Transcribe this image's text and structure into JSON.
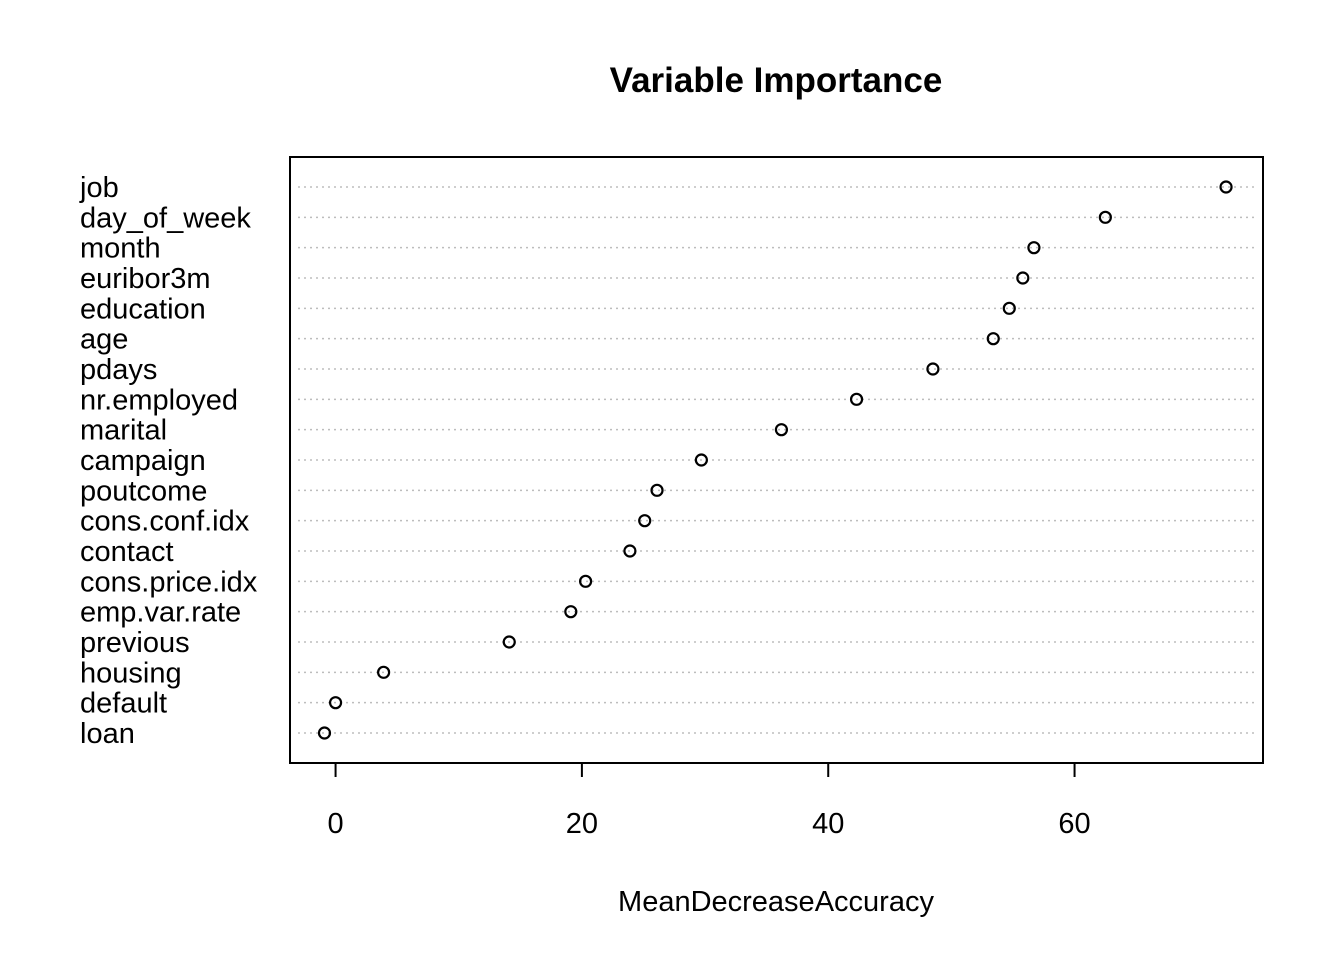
{
  "chart_data": {
    "type": "scatter",
    "title": "Variable Importance",
    "xlabel": "MeanDecreaseAccuracy",
    "ylabel": "",
    "xlim": [
      -3.7,
      75.3
    ],
    "xticks": [
      0,
      20,
      40,
      60
    ],
    "grid": "dotted horizontal",
    "categories": [
      "job",
      "day_of_week",
      "month",
      "euribor3m",
      "education",
      "age",
      "pdays",
      "nr.employed",
      "marital",
      "campaign",
      "poutcome",
      "cons.conf.idx",
      "contact",
      "cons.price.idx",
      "emp.var.rate",
      "previous",
      "housing",
      "default",
      "loan"
    ],
    "values": [
      72.3,
      62.5,
      56.7,
      55.8,
      54.7,
      53.4,
      48.5,
      42.3,
      36.2,
      29.7,
      26.1,
      25.1,
      23.9,
      20.3,
      19.1,
      14.1,
      3.9,
      0.0,
      -0.9
    ]
  }
}
